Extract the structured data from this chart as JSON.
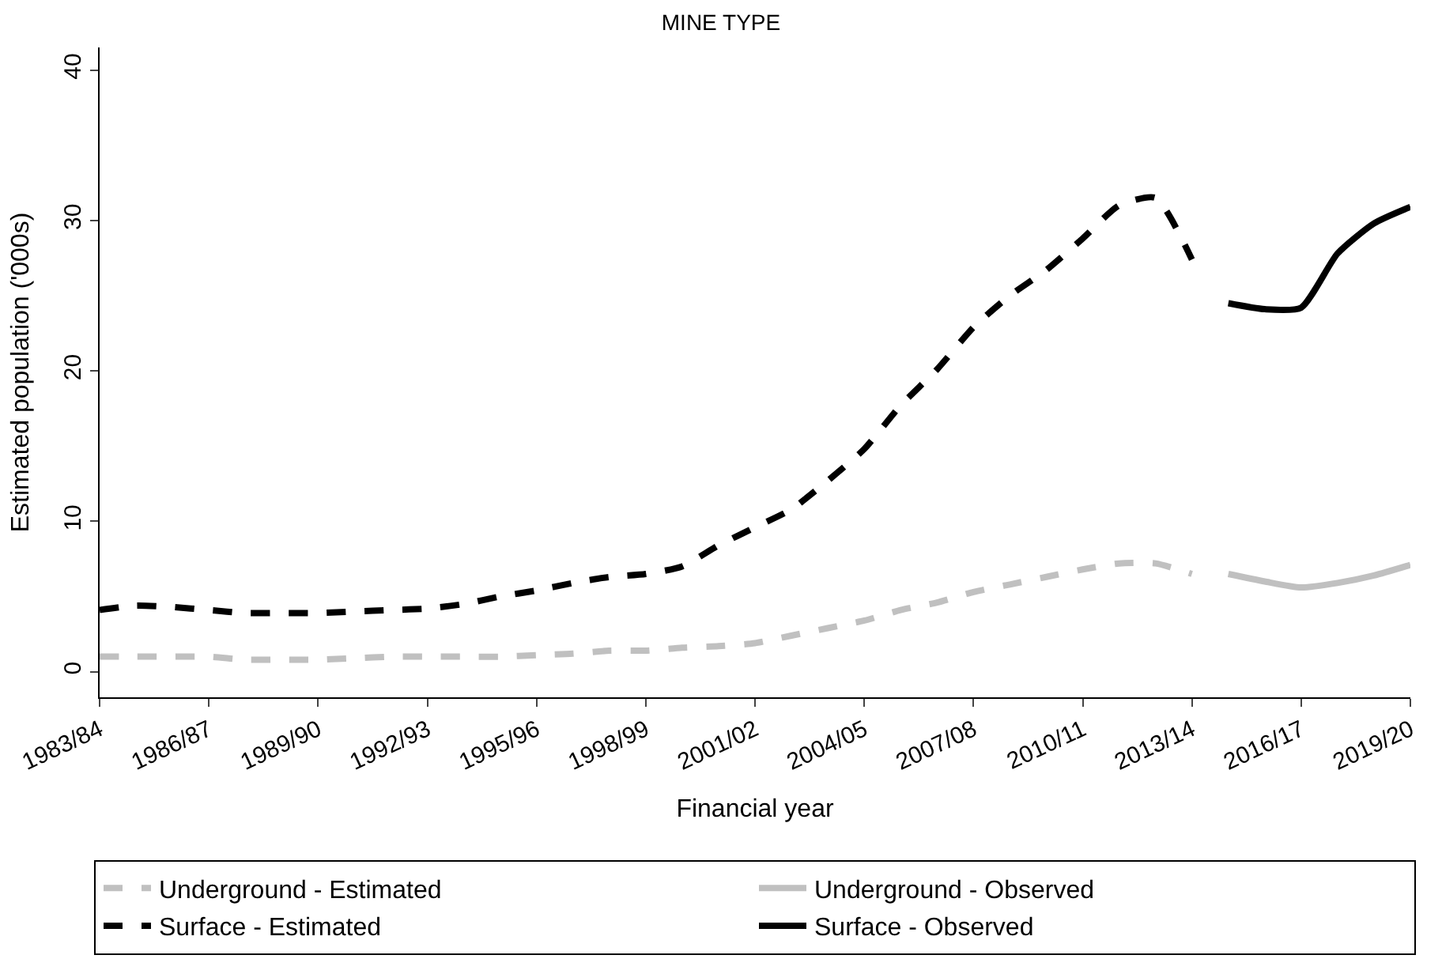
{
  "chart_data": {
    "type": "line",
    "title": "MINE TYPE",
    "xlabel": "Financial year",
    "ylabel": "Estimated population ('000s)",
    "categories": [
      "1983/84",
      null,
      null,
      "1986/87",
      null,
      null,
      "1989/90",
      null,
      null,
      "1992/93",
      null,
      null,
      "1995/96",
      null,
      null,
      "1998/99",
      null,
      null,
      "2001/02",
      null,
      null,
      "2004/05",
      null,
      null,
      "2007/08",
      null,
      null,
      "2010/11",
      null,
      null,
      "2013/14",
      null,
      null,
      "2016/17",
      null,
      null,
      "2019/20"
    ],
    "ylim": [
      -1.7,
      41.5
    ],
    "yticks": [
      0,
      10,
      20,
      30,
      40
    ],
    "legend": "bottom",
    "marker": "none",
    "series": [
      {
        "name": "Underground - Estimated",
        "color": "#c0c0c0",
        "line_style": "dashed",
        "values": [
          1.0,
          1.0,
          1.0,
          1.0,
          0.8,
          0.8,
          0.8,
          0.9,
          1.0,
          1.0,
          1.0,
          1.0,
          1.1,
          1.2,
          1.4,
          1.4,
          1.6,
          1.7,
          1.9,
          2.4,
          2.9,
          3.4,
          4.1,
          4.6,
          5.3,
          5.8,
          6.3,
          6.8,
          7.2,
          7.2,
          6.5,
          null,
          null,
          null,
          null,
          null,
          null
        ]
      },
      {
        "name": "Underground - Observed",
        "color": "#c0c0c0",
        "line_style": "solid",
        "values": [
          null,
          null,
          null,
          null,
          null,
          null,
          null,
          null,
          null,
          null,
          null,
          null,
          null,
          null,
          null,
          null,
          null,
          null,
          null,
          null,
          null,
          null,
          null,
          null,
          null,
          null,
          null,
          null,
          null,
          null,
          null,
          6.5,
          6.0,
          5.6,
          5.9,
          6.4,
          7.1
        ]
      },
      {
        "name": "Surface - Estimated",
        "color": "#000000",
        "line_style": "dashed",
        "values": [
          4.1,
          4.4,
          4.3,
          4.1,
          3.9,
          3.9,
          3.9,
          4.0,
          4.1,
          4.2,
          4.5,
          5.0,
          5.4,
          5.9,
          6.3,
          6.5,
          7.0,
          8.4,
          9.6,
          10.8,
          12.7,
          14.8,
          17.7,
          20.1,
          22.9,
          25.0,
          26.7,
          28.8,
          31.0,
          31.5,
          27.4,
          null,
          null,
          null,
          null,
          null,
          null
        ]
      },
      {
        "name": "Surface - Observed",
        "color": "#000000",
        "line_style": "solid",
        "values": [
          null,
          null,
          null,
          null,
          null,
          null,
          null,
          null,
          null,
          null,
          null,
          null,
          null,
          null,
          null,
          null,
          null,
          null,
          null,
          null,
          null,
          null,
          null,
          null,
          null,
          null,
          null,
          null,
          null,
          null,
          null,
          24.5,
          24.1,
          24.2,
          27.8,
          29.8,
          30.9
        ]
      }
    ]
  }
}
